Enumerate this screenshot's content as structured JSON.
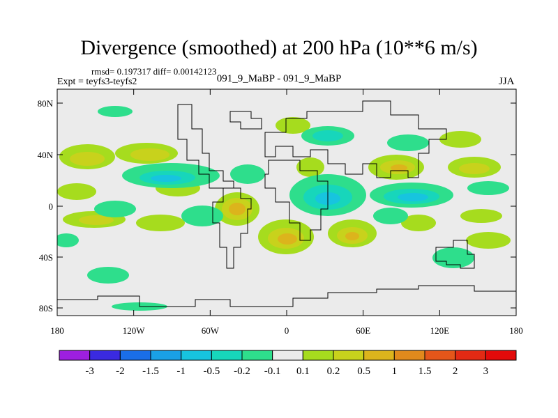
{
  "title": "Divergence (smoothed) at 200 hPa (10**6 m/s)",
  "stats": "rmsd= 0.197317 diff= 0.00142123",
  "expt": "Expt = teyfs3-teyfs2",
  "subtitle": "091_9_MaBP - 091_9_MaBP",
  "season": "JJA",
  "axes": {
    "x_ticks": [
      "180",
      "120W",
      "60W",
      "0",
      "60E",
      "120E",
      "180"
    ],
    "y_ticks": [
      "80N",
      "40N",
      "0",
      "40S",
      "80S"
    ]
  },
  "colorbar": {
    "labels": [
      "-3",
      "-2",
      "-1.5",
      "-1",
      "-0.5",
      "-0.2",
      "-0.1",
      "0.1",
      "0.2",
      "0.5",
      "1",
      "1.5",
      "2",
      "3"
    ],
    "colors": [
      "#9d1fe0",
      "#3a2ae0",
      "#1a6ee8",
      "#1aa0e6",
      "#17c4df",
      "#17d6bb",
      "#2ede8c",
      "#ebebeb",
      "#a6dc1e",
      "#c8d21c",
      "#dcb41c",
      "#e18a1c",
      "#e4561a",
      "#e32a14",
      "#e30a0a"
    ]
  },
  "colors": {
    "background": "#ebebeb",
    "neg_weak": "#17d6bb",
    "neg_mid": "#17c4df",
    "neg_strong": "#1aa0e6",
    "pos_weak": "#a6dc1e",
    "pos_mid": "#c8d21c",
    "pos_strong": "#dcb41c"
  }
}
